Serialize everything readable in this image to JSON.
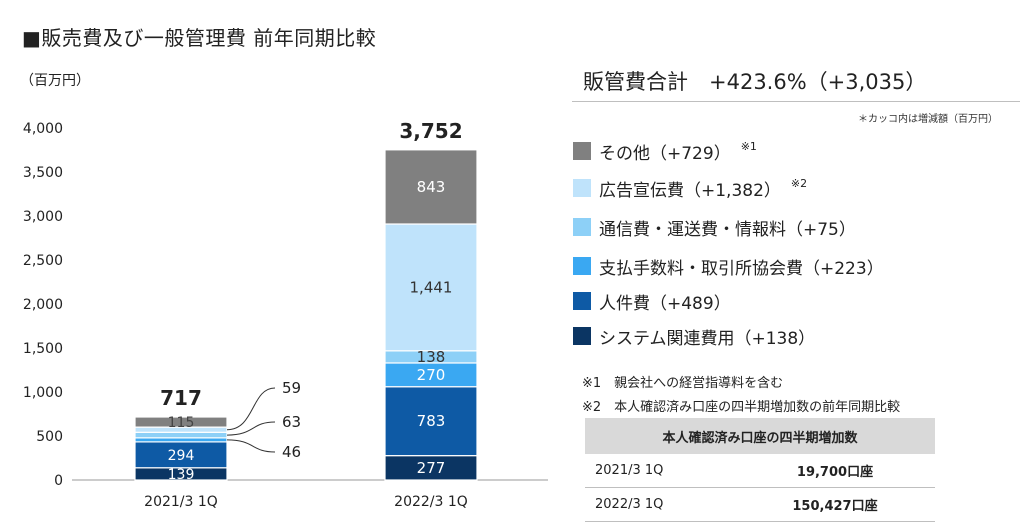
{
  "title": "■販売費及び一般管理費 前年同期比較",
  "unit": "（百万円）",
  "summary": "販管費合計　+423.6%（+3,035）",
  "paren_note": "＊カッコ内は増減額（百万円）",
  "legend": [
    {
      "label": "その他（+729）",
      "note": "※1",
      "color": "#808080"
    },
    {
      "label": "広告宣伝費（+1,382）",
      "note": "※2",
      "color": "#bfe3fb"
    },
    {
      "label": "通信費・運送費・情報料（+75）",
      "note": "",
      "color": "#8dd0f7"
    },
    {
      "label": "支払手数料・取引所協会費（+223）",
      "note": "",
      "color": "#3aa8f2"
    },
    {
      "label": "人件費（+489）",
      "note": "",
      "color": "#0e5aa5"
    },
    {
      "label": "システム関連費用（+138）",
      "note": "",
      "color": "#0b3563"
    }
  ],
  "footnotes": [
    "※1　親会社への経営指導料を含む",
    "※2　本人確認済み口座の四半期増加数の前年同期比較"
  ],
  "table": {
    "header": "本人確認済み口座の四半期増加数",
    "rows": [
      {
        "period": "2021/3 1Q",
        "count": "19,700口座"
      },
      {
        "period": "2022/3 1Q",
        "count": "150,427口座"
      }
    ]
  },
  "chart_data": {
    "type": "bar",
    "stacked": true,
    "categories": [
      "2021/3 1Q",
      "2022/3 1Q"
    ],
    "ylim": [
      0,
      4000
    ],
    "yticks": [
      "0",
      "500",
      "1,000",
      "1,500",
      "2,000",
      "2,500",
      "3,000",
      "3,500",
      "4,000"
    ],
    "tick_values": [
      0,
      500,
      1000,
      1500,
      2000,
      2500,
      3000,
      3500,
      4000
    ],
    "totals": [
      "717",
      "3,752"
    ],
    "series": [
      {
        "name": "システム関連費用",
        "color": "#0b3563",
        "values": [
          139,
          277
        ],
        "labels": [
          "139",
          "277"
        ]
      },
      {
        "name": "人件費",
        "color": "#0e5aa5",
        "values": [
          294,
          783
        ],
        "labels": [
          "294",
          "783"
        ]
      },
      {
        "name": "支払手数料・取引所協会費",
        "color": "#3aa8f2",
        "values": [
          46,
          270
        ],
        "labels": [
          "46",
          "270"
        ]
      },
      {
        "name": "通信費・運送費・情報料",
        "color": "#8dd0f7",
        "values": [
          63,
          138
        ],
        "labels": [
          "63",
          "138"
        ]
      },
      {
        "name": "広告宣伝費",
        "color": "#bfe3fb",
        "values": [
          59,
          1441
        ],
        "labels": [
          "59",
          "1,441"
        ]
      },
      {
        "name": "その他",
        "color": "#808080",
        "values": [
          115,
          843
        ],
        "labels": [
          "115",
          "843"
        ]
      }
    ]
  }
}
